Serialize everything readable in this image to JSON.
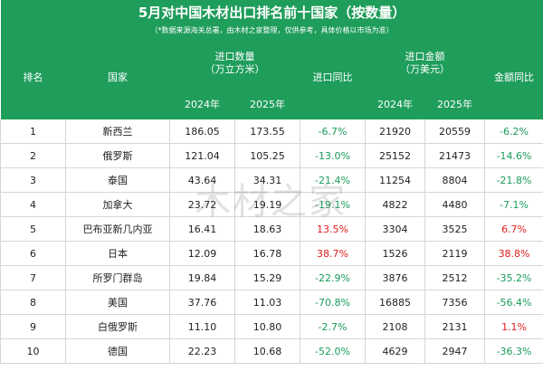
{
  "title": "5月对中国木材出口排名前十国家（按数量）",
  "note": "（*数据来源海关总署，由木材之家整理，仅供参考，具体价格以市场为准）",
  "headers": {
    "rank": "排名",
    "country": "国家",
    "import_qty": "进口数量",
    "import_qty_unit": "（万立方米）",
    "qty_yoy": "进口同比",
    "import_amt": "进口金额",
    "import_amt_unit": "（万美元）",
    "amt_yoy": "金额同比",
    "y2024_qty": "2024年",
    "y2025_qty": "2025年",
    "y2024_amt": "2024年",
    "y2025_amt": "2025年"
  },
  "rows": [
    {
      "rank": "1",
      "country": "新西兰",
      "q2024": "186.05",
      "q2025": "173.55",
      "qyoy": "-6.7%",
      "a2024": "21920",
      "a2025": "20559",
      "ayoy": "-6.2%"
    },
    {
      "rank": "2",
      "country": "俄罗斯",
      "q2024": "121.04",
      "q2025": "105.25",
      "qyoy": "-13.0%",
      "a2024": "25152",
      "a2025": "21473",
      "ayoy": "-14.6%"
    },
    {
      "rank": "3",
      "country": "泰国",
      "q2024": "43.64",
      "q2025": "34.31",
      "qyoy": "-21.4%",
      "a2024": "11254",
      "a2025": "8804",
      "ayoy": "-21.8%"
    },
    {
      "rank": "4",
      "country": "加拿大",
      "q2024": "23.72",
      "q2025": "19.19",
      "qyoy": "-19.1%",
      "a2024": "4822",
      "a2025": "4480",
      "ayoy": "-7.1%"
    },
    {
      "rank": "5",
      "country": "巴布亚新几内亚",
      "q2024": "16.41",
      "q2025": "18.63",
      "qyoy": "13.5%",
      "a2024": "3304",
      "a2025": "3525",
      "ayoy": "6.7%"
    },
    {
      "rank": "6",
      "country": "日本",
      "q2024": "12.09",
      "q2025": "16.78",
      "qyoy": "38.7%",
      "a2024": "1526",
      "a2025": "2119",
      "ayoy": "38.8%"
    },
    {
      "rank": "7",
      "country": "所罗门群岛",
      "q2024": "19.84",
      "q2025": "15.29",
      "qyoy": "-22.9%",
      "a2024": "3876",
      "a2025": "2512",
      "ayoy": "-35.2%"
    },
    {
      "rank": "8",
      "country": "美国",
      "q2024": "37.76",
      "q2025": "11.03",
      "qyoy": "-70.8%",
      "a2024": "16885",
      "a2025": "7356",
      "ayoy": "-56.4%"
    },
    {
      "rank": "9",
      "country": "白俄罗斯",
      "q2024": "11.10",
      "q2025": "10.80",
      "qyoy": "-2.7%",
      "a2024": "2108",
      "a2025": "2131",
      "ayoy": "1.1%"
    },
    {
      "rank": "10",
      "country": "德国",
      "q2024": "22.23",
      "q2025": "10.68",
      "qyoy": "-52.0%",
      "a2024": "4629",
      "a2025": "2947",
      "ayoy": "-36.3%"
    }
  ],
  "watermark": "木材之家",
  "colors": {
    "header_bg": "#1f9d5b",
    "negative": "#1a9b5a",
    "positive": "#e01e1e"
  }
}
